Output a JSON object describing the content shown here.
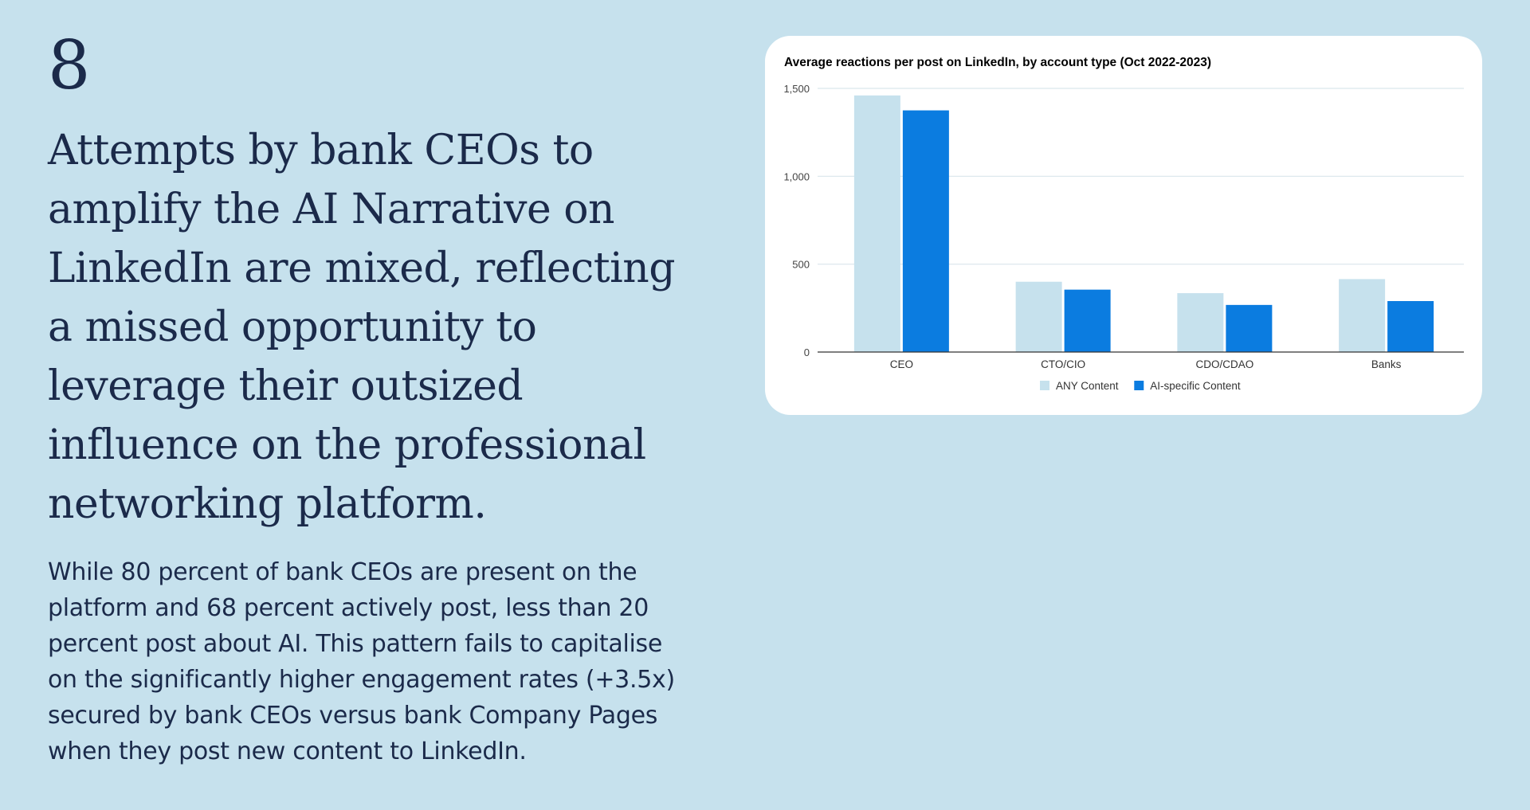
{
  "slide": {
    "number": "8",
    "headline": "Attempts by bank CEOs to amplify the AI Narrative on LinkedIn are mixed, reflecting a missed opportunity to leverage their outsized influence on the professional networking platform.",
    "body": "While 80 percent of bank CEOs are present on the platform and 68 percent actively post, less than 20 percent post about AI. This pattern fails to capitalise on the significantly higher engagement rates (+3.5x) secured by bank CEOs versus bank Company Pages when they post new content to LinkedIn."
  },
  "colors": {
    "background": "#c6e1ed",
    "text": "#1b2a4a",
    "any_content": "#c6e1ed",
    "ai_content": "#0b7ce0"
  },
  "chart_data": {
    "type": "bar",
    "title": "Average reactions per post on LinkedIn, by account type (Oct 2022-2023)",
    "xlabel": "",
    "ylabel": "",
    "categories": [
      "CEO",
      "CTO/CIO",
      "CDO/CDAO",
      "Banks"
    ],
    "series": [
      {
        "name": "ANY Content",
        "values": [
          1460,
          400,
          335,
          415
        ],
        "color": "#c6e1ed"
      },
      {
        "name": "AI-specific Content",
        "values": [
          1375,
          355,
          268,
          290
        ],
        "color": "#0b7ce0"
      }
    ],
    "ylim": [
      0,
      1500
    ],
    "yticks": [
      0,
      500,
      1000,
      1500
    ],
    "ytick_labels": [
      "0",
      "500",
      "1,000",
      "1,500"
    ],
    "grid": true,
    "legend": "bottom"
  }
}
